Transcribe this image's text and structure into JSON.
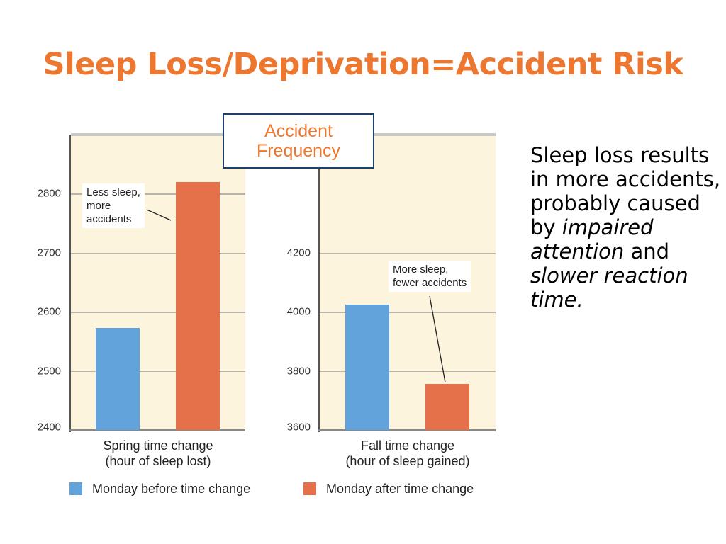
{
  "slide": {
    "title": "Sleep Loss/Deprivation=Accident Risk",
    "title_color": "#ee7730"
  },
  "frequency_box": {
    "label": "Accident\nFrequency",
    "color": "#ee7730"
  },
  "side_text": {
    "line1": "Sleep loss results in more accidents, probably caused by",
    "emph1": "impaired attention",
    "connector": "and",
    "emph2": "slower reaction time."
  },
  "legend": [
    {
      "label": "Monday before time change",
      "color": "#63a3dc"
    },
    {
      "label": "Monday after time change",
      "color": "#e5714a"
    }
  ],
  "chart_data": [
    {
      "type": "bar",
      "categories": [
        "Spring time change\n(hour of sleep lost)"
      ],
      "series": [
        {
          "name": "Monday before time change",
          "values": [
            2572
          ]
        },
        {
          "name": "Monday after time change",
          "values": [
            2819
          ]
        }
      ],
      "yticks": [
        2400,
        2500,
        2600,
        2700,
        2800
      ],
      "ylim": [
        2400,
        2900
      ],
      "annotation": "Less sleep,\nmore\naccidents",
      "grid": true
    },
    {
      "type": "bar",
      "categories": [
        "Fall time change\n(hour of sleep gained)"
      ],
      "series": [
        {
          "name": "Monday before time change",
          "values": [
            4025
          ]
        },
        {
          "name": "Monday after time change",
          "values": [
            3755
          ]
        }
      ],
      "yticks": [
        3600,
        3800,
        4000,
        4200
      ],
      "ylim": [
        3600,
        4600
      ],
      "annotation": "More sleep,\nfewer accidents",
      "grid": true
    }
  ]
}
